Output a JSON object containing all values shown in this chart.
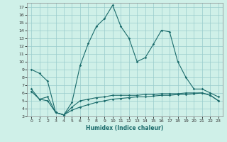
{
  "xlabel": "Humidex (Indice chaleur)",
  "background_color": "#cff0e8",
  "grid_color": "#99cccc",
  "line_color": "#1a6b6b",
  "xlim": [
    -0.5,
    23.5
  ],
  "ylim": [
    3,
    17.5
  ],
  "yticks": [
    3,
    4,
    5,
    6,
    7,
    8,
    9,
    10,
    11,
    12,
    13,
    14,
    15,
    16,
    17
  ],
  "xticks": [
    0,
    1,
    2,
    3,
    4,
    5,
    6,
    7,
    8,
    9,
    10,
    11,
    12,
    13,
    14,
    15,
    16,
    17,
    18,
    19,
    20,
    21,
    22,
    23
  ],
  "line1": [
    9.0,
    8.5,
    7.5,
    3.5,
    3.2,
    4.8,
    9.5,
    12.3,
    14.5,
    15.5,
    17.2,
    14.5,
    13.0,
    10.0,
    10.5,
    12.2,
    14.0,
    13.8,
    10.0,
    8.0,
    6.5,
    6.5,
    6.0,
    5.5
  ],
  "line2": [
    6.2,
    5.2,
    5.0,
    3.5,
    3.2,
    3.8,
    4.2,
    4.5,
    4.8,
    5.0,
    5.2,
    5.3,
    5.4,
    5.5,
    5.5,
    5.6,
    5.7,
    5.7,
    5.8,
    5.8,
    5.9,
    6.0,
    5.7,
    5.0
  ],
  "line3": [
    6.5,
    5.2,
    5.5,
    3.5,
    3.2,
    4.2,
    5.0,
    5.2,
    5.4,
    5.5,
    5.7,
    5.7,
    5.7,
    5.7,
    5.8,
    5.8,
    5.9,
    5.9,
    5.9,
    6.0,
    6.0,
    6.0,
    5.7,
    5.0
  ]
}
